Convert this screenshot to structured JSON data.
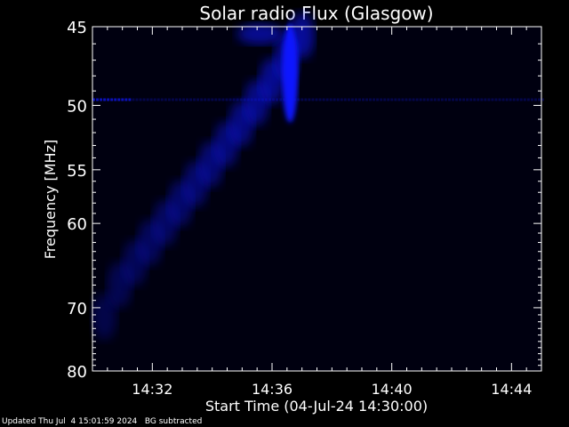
{
  "footer": {
    "updated": "Updated Thu Jul  4 15:01:59 2024",
    "note": "BG subtracted"
  },
  "chart_data": {
    "type": "heatmap",
    "title": "Solar radio Flux (Glasgow)",
    "xlabel": "Start Time (04-Jul-24 14:30:00)",
    "ylabel": "Frequency [MHz]",
    "x_unit": "minutes after 14:30:00",
    "xlim": [
      0,
      15
    ],
    "x_ticks": [
      {
        "value": 2,
        "label": "14:32"
      },
      {
        "value": 6,
        "label": "14:36"
      },
      {
        "value": 10,
        "label": "14:40"
      },
      {
        "value": 14,
        "label": "14:44"
      }
    ],
    "ylim": [
      45,
      80
    ],
    "y_direction": "reversed",
    "y_ticks": [
      {
        "value": 45,
        "label": "45"
      },
      {
        "value": 50,
        "label": "50"
      },
      {
        "value": 55,
        "label": "55"
      },
      {
        "value": 60,
        "label": "60"
      },
      {
        "value": 70,
        "label": "70"
      },
      {
        "value": 80,
        "label": "80"
      }
    ],
    "background": "#000010",
    "colormap": [
      "#000010",
      "#1018ff"
    ],
    "features": [
      {
        "name": "drift-burst",
        "t0": 0.4,
        "t1": 7.0,
        "f_start": 70,
        "f_end": 45,
        "intensity": 0.7
      },
      {
        "name": "core-burst",
        "t": 6.6,
        "f0": 45,
        "f1": 51,
        "intensity": 1.0
      },
      {
        "name": "interference-line",
        "f": 49.6,
        "t0": 0,
        "t1": 15,
        "intensity": 0.4
      }
    ]
  }
}
